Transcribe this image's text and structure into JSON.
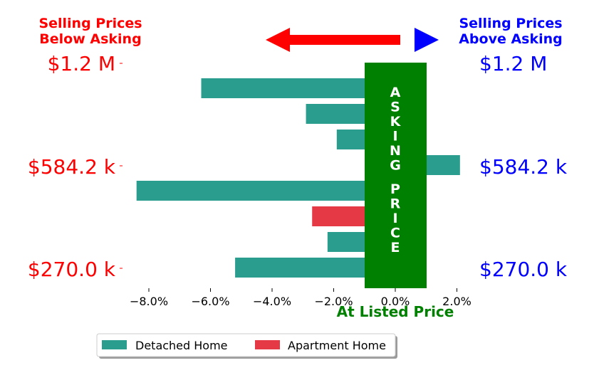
{
  "chart_data": {
    "type": "bar",
    "orientation": "horizontal",
    "xlabel": "At Listed Price",
    "xlim": [
      -0.09,
      0.025
    ],
    "xticks": [
      -0.08,
      -0.06,
      -0.04,
      -0.02,
      0.0,
      0.02
    ],
    "xtick_labels": [
      "−8.0%",
      "−6.0%",
      "−4.0%",
      "−2.0%",
      "0.0%",
      "2.0%"
    ],
    "bars": [
      {
        "value": -0.063,
        "series": "Detached Home"
      },
      {
        "value": -0.029,
        "series": "Detached Home"
      },
      {
        "value": -0.019,
        "series": "Detached Home"
      },
      {
        "value": 0.021,
        "series": "Detached Home"
      },
      {
        "value": -0.084,
        "series": "Detached Home"
      },
      {
        "value": -0.027,
        "series": "Apartment Home"
      },
      {
        "value": -0.022,
        "series": "Detached Home"
      },
      {
        "value": -0.052,
        "series": "Detached Home"
      }
    ],
    "y_tick_labels": [
      "$1.2 M",
      "$584.2 k",
      "$270.0 k"
    ],
    "left_header": [
      "Selling Prices",
      "Below Asking"
    ],
    "right_header": [
      "Selling Prices",
      "Above Asking"
    ],
    "center_band_text": "ASKING PRICE",
    "legend": {
      "placement": "bottom",
      "entries": [
        {
          "name": "Detached Home",
          "color": "#2a9d8f"
        },
        {
          "name": "Apartment Home",
          "color": "#e63946"
        }
      ]
    },
    "colors": {
      "below": "#ff0000",
      "above": "#0000ff",
      "band": "#008000",
      "detached": "#2a9d8f",
      "apartment": "#e63946"
    }
  }
}
